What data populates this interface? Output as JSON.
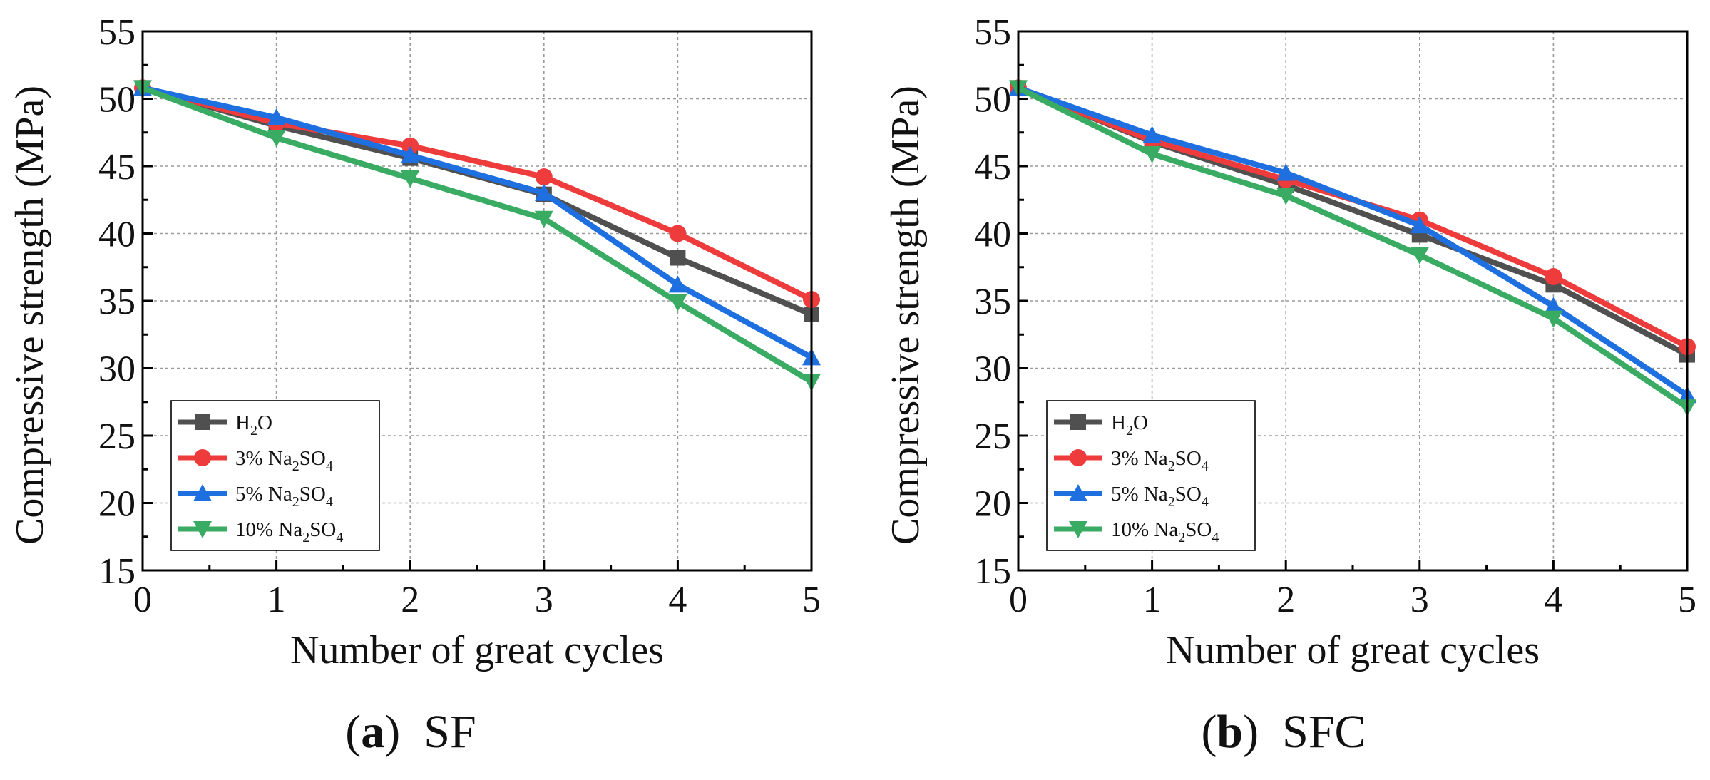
{
  "chart_data": [
    {
      "type": "line",
      "panel_label": "a",
      "panel_title": "SF",
      "xlabel": "Number of great cycles",
      "ylabel": "Compressive strength (MPa)",
      "xlim": [
        0,
        5
      ],
      "ylim": [
        15,
        55
      ],
      "xticks": [
        "0",
        "1",
        "2",
        "3",
        "4",
        "5"
      ],
      "yticks": [
        "15",
        "20",
        "25",
        "30",
        "35",
        "40",
        "45",
        "50",
        "55"
      ],
      "grid": true,
      "legend_position": "bottom-left",
      "x": [
        0,
        1,
        2,
        3,
        4,
        5
      ],
      "series": [
        {
          "name": "H2O",
          "label_main": "H",
          "label_sub": "2",
          "label_tail": "O",
          "label_sub2": "",
          "color": "#505050",
          "marker": "square",
          "values": [
            50.8,
            48.0,
            45.6,
            42.9,
            38.2,
            34.0
          ]
        },
        {
          "name": "3% Na2SO4",
          "label_main": "3% Na",
          "label_sub": "2",
          "label_tail": "SO",
          "label_sub2": "4",
          "color": "#ee3b3b",
          "marker": "circle",
          "values": [
            50.8,
            48.2,
            46.5,
            44.2,
            40.0,
            35.1
          ]
        },
        {
          "name": "5% Na2SO4",
          "label_main": "5% Na",
          "label_sub": "2",
          "label_tail": "SO",
          "label_sub2": "4",
          "color": "#1e6fe0",
          "marker": "triangle-up",
          "values": [
            50.8,
            48.6,
            45.8,
            43.0,
            36.2,
            30.8
          ]
        },
        {
          "name": "10% Na2SO4",
          "label_main": "10% Na",
          "label_sub": "2",
          "label_tail": "SO",
          "label_sub2": "4",
          "color": "#3aab63",
          "marker": "triangle-down",
          "values": [
            50.8,
            47.1,
            44.1,
            41.1,
            34.9,
            29.0
          ]
        }
      ]
    },
    {
      "type": "line",
      "panel_label": "b",
      "panel_title": "SFC",
      "xlabel": "Number of great cycles",
      "ylabel": "Compressive strength (MPa)",
      "xlim": [
        0,
        5
      ],
      "ylim": [
        15,
        55
      ],
      "xticks": [
        "0",
        "1",
        "2",
        "3",
        "4",
        "5"
      ],
      "yticks": [
        "15",
        "20",
        "25",
        "30",
        "35",
        "40",
        "45",
        "50",
        "55"
      ],
      "grid": true,
      "legend_position": "bottom-left",
      "x": [
        0,
        1,
        2,
        3,
        4,
        5
      ],
      "series": [
        {
          "name": "H2O",
          "label_main": "H",
          "label_sub": "2",
          "label_tail": "O",
          "label_sub2": "",
          "color": "#505050",
          "marker": "square",
          "values": [
            50.8,
            46.8,
            43.6,
            39.9,
            36.2,
            31.0
          ]
        },
        {
          "name": "3% Na2SO4",
          "label_main": "3% Na",
          "label_sub": "2",
          "label_tail": "SO",
          "label_sub2": "4",
          "color": "#ee3b3b",
          "marker": "circle",
          "values": [
            50.8,
            46.9,
            44.0,
            41.0,
            36.8,
            31.6
          ]
        },
        {
          "name": "5% Na2SO4",
          "label_main": "5% Na",
          "label_sub": "2",
          "label_tail": "SO",
          "label_sub2": "4",
          "color": "#1e6fe0",
          "marker": "triangle-up",
          "values": [
            50.8,
            47.3,
            44.5,
            40.6,
            34.6,
            28.0
          ]
        },
        {
          "name": "10% Na2SO4",
          "label_main": "10% Na",
          "label_sub": "2",
          "label_tail": "SO",
          "label_sub2": "4",
          "color": "#3aab63",
          "marker": "triangle-down",
          "values": [
            50.8,
            45.9,
            42.8,
            38.4,
            33.7,
            27.1
          ]
        }
      ]
    }
  ]
}
